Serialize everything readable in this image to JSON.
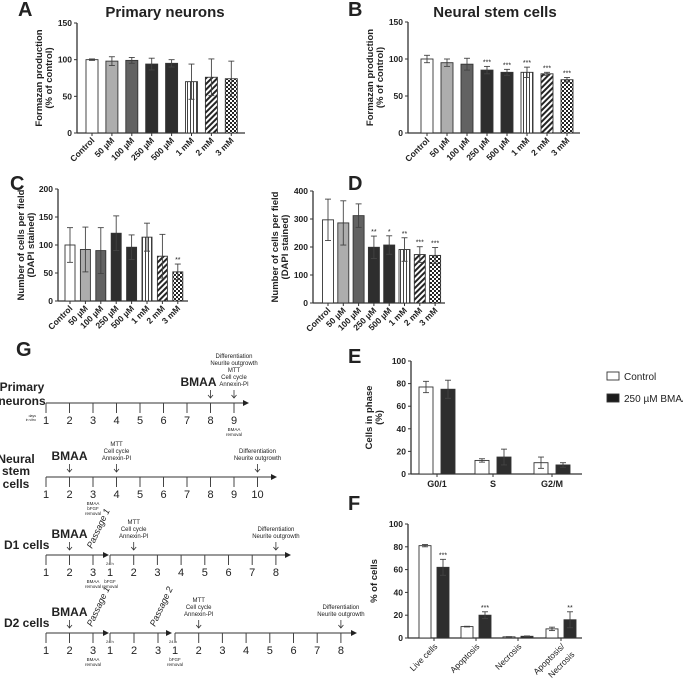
{
  "chart_data": [
    {
      "id": "A",
      "type": "bar",
      "panel_label": "A",
      "title": "Primary neurons",
      "ylabel": [
        "Formazan production",
        "(% of control)"
      ],
      "ylim": [
        0,
        150
      ],
      "yticks": [
        0,
        50,
        100,
        150
      ],
      "categories": [
        "Control",
        "50 µM",
        "100 µM",
        "250 µM",
        "500 µM",
        "1 mM",
        "2 mM",
        "3 mM"
      ],
      "values": [
        100,
        98,
        99,
        94,
        95,
        70,
        76,
        74
      ],
      "errors": [
        1,
        6,
        4,
        8,
        5,
        24,
        25,
        24
      ],
      "significance": [
        "",
        "",
        "",
        "",
        "",
        "",
        "",
        ""
      ]
    },
    {
      "id": "B",
      "type": "bar",
      "panel_label": "B",
      "title": "Neural stem cells",
      "ylabel": [
        "Formazan production",
        "(% of control)"
      ],
      "ylim": [
        0,
        150
      ],
      "yticks": [
        0,
        50,
        100,
        150
      ],
      "categories": [
        "Control",
        "50 µM",
        "100 µM",
        "250 µM",
        "500 µM",
        "1 mM",
        "2 mM",
        "3 mM"
      ],
      "values": [
        100,
        95,
        93,
        85,
        82,
        82,
        80,
        72
      ],
      "errors": [
        5,
        5,
        8,
        5,
        4,
        7,
        2,
        3
      ],
      "significance": [
        "",
        "",
        "",
        "***",
        "***",
        "***",
        "***",
        "***"
      ]
    },
    {
      "id": "C",
      "type": "bar",
      "panel_label": "C",
      "title": "",
      "ylabel": [
        "Number of cells per field",
        "(DAPI stained)"
      ],
      "ylim": [
        0,
        200
      ],
      "yticks": [
        0,
        50,
        100,
        150,
        200
      ],
      "categories": [
        "Control",
        "50 µM",
        "100 µM",
        "250 µM",
        "500 µM",
        "1 mM",
        "2 mM",
        "3 mM"
      ],
      "values": [
        100,
        92,
        90,
        121,
        96,
        114,
        80,
        52
      ],
      "errors": [
        31,
        40,
        41,
        31,
        22,
        25,
        39,
        14
      ],
      "significance": [
        "",
        "",
        "",
        "",
        "",
        "",
        "",
        "**"
      ]
    },
    {
      "id": "D",
      "type": "bar",
      "panel_label": "D",
      "title": "",
      "ylabel": [
        "Number of cells per field",
        "(DAPI stained)"
      ],
      "ylim": [
        0,
        400
      ],
      "yticks": [
        0,
        100,
        200,
        300,
        400
      ],
      "categories": [
        "Control",
        "50 µM",
        "100 µM",
        "250 µM",
        "500 µM",
        "1 mM",
        "2 mM",
        "3 mM"
      ],
      "values": [
        297,
        286,
        312,
        199,
        207,
        191,
        173,
        170
      ],
      "errors": [
        74,
        79,
        42,
        40,
        33,
        42,
        28,
        28
      ],
      "significance": [
        "",
        "",
        "",
        "**",
        "*",
        "**",
        "***",
        "***"
      ]
    },
    {
      "id": "E",
      "type": "bar",
      "panel_label": "E",
      "title": "",
      "ylabel": [
        "Cells in phase",
        "(%)"
      ],
      "ylim": [
        0,
        100
      ],
      "yticks": [
        0,
        20,
        40,
        60,
        80,
        100
      ],
      "categories": [
        "G0/1",
        "S",
        "G2/M"
      ],
      "series": [
        {
          "name": "Control",
          "values": [
            77,
            12,
            10
          ],
          "errors": [
            5,
            1.5,
            5
          ],
          "significance": [
            "",
            "",
            ""
          ]
        },
        {
          "name": "250 µM BMAA",
          "values": [
            75,
            15,
            8
          ],
          "errors": [
            8,
            7,
            2
          ],
          "significance": [
            "",
            "",
            ""
          ]
        }
      ],
      "legend": "right"
    },
    {
      "id": "F",
      "type": "bar",
      "panel_label": "F",
      "title": "",
      "ylabel": [
        "% of cells"
      ],
      "ylim": [
        0,
        100
      ],
      "yticks": [
        0,
        20,
        40,
        60,
        80,
        100
      ],
      "categories": [
        "Live cells",
        "Apoptosis",
        "Necrosis",
        "Apoptosis/\nNecrosis"
      ],
      "series": [
        {
          "name": "Control",
          "values": [
            81,
            10,
            1,
            8
          ],
          "errors": [
            1,
            0.3,
            0.2,
            1.5
          ],
          "significance": [
            "",
            "",
            "",
            ""
          ]
        },
        {
          "name": "250 µM BMAA",
          "values": [
            62,
            20,
            1.5,
            16
          ],
          "errors": [
            7,
            3,
            0.3,
            7
          ],
          "significance": [
            "***",
            "***",
            "",
            "**"
          ]
        }
      ]
    }
  ],
  "legend": {
    "items": [
      "Control",
      "250 µM BMAA"
    ]
  },
  "timeline": {
    "panel_label": "G",
    "rows": [
      {
        "name": [
          "Primary",
          "neurons"
        ],
        "segments": [
          [
            "1",
            "2",
            "3",
            "4",
            "5",
            "6",
            "7",
            "8",
            "9"
          ]
        ],
        "pre_label": [
          "days",
          "in vitro"
        ],
        "events": [
          {
            "seg": 0,
            "tick": 7,
            "above": [
              "BMAA"
            ],
            "big": true
          },
          {
            "seg": 0,
            "tick": 8,
            "above": [
              "Differentiation",
              "Neurite outgrowth",
              "MTT",
              "Cell cycle",
              "Annexin-PI"
            ]
          },
          {
            "seg": 0,
            "tick": 8,
            "below": [
              "BMAA",
              "removal"
            ]
          }
        ]
      },
      {
        "name": [
          "Neural",
          "stem",
          "cells"
        ],
        "segments": [
          [
            "1",
            "2",
            "3",
            "4",
            "5",
            "6",
            "7",
            "8",
            "9",
            "10"
          ]
        ],
        "events": [
          {
            "seg": 0,
            "tick": 1,
            "above": [
              "BMAA"
            ],
            "big": true
          },
          {
            "seg": 0,
            "tick": 3,
            "above": [
              "MTT",
              "Cell cycle",
              "Annexin-PI"
            ]
          },
          {
            "seg": 0,
            "tick": 9,
            "above": [
              "Differentiation",
              "Neurite outgrowth"
            ]
          },
          {
            "seg": 0,
            "tick": 2,
            "below": [
              "BMAA",
              "bFGF",
              "removal"
            ]
          }
        ]
      },
      {
        "name": [
          "D1 cells"
        ],
        "segments": [
          [
            "1",
            "2",
            "3"
          ],
          [
            "1",
            "2",
            "3",
            "4",
            "5",
            "6",
            "7",
            "8"
          ]
        ],
        "passages": [
          "Passage 1"
        ],
        "gap_label": "24 h",
        "events": [
          {
            "seg": 0,
            "tick": 1,
            "above": [
              "BMAA"
            ],
            "big": true
          },
          {
            "seg": 1,
            "tick": 1,
            "above": [
              "MTT",
              "Cell cycle",
              "Annexin-PI"
            ]
          },
          {
            "seg": 1,
            "tick": 7,
            "above": [
              "Differentiation",
              "Neurite outgrowth"
            ]
          },
          {
            "seg": 0,
            "tick": 2,
            "below": [
              "BMAA",
              "removal"
            ]
          },
          {
            "seg": 1,
            "tick": 0,
            "below": [
              "bFGF",
              "removal"
            ]
          }
        ]
      },
      {
        "name": [
          "D2 cells"
        ],
        "segments": [
          [
            "1",
            "2",
            "3"
          ],
          [
            "1",
            "2",
            "3"
          ],
          [
            "1",
            "2",
            "3",
            "4",
            "5",
            "6",
            "7",
            "8"
          ]
        ],
        "passages": [
          "Passage 1",
          "Passage 2"
        ],
        "gap_label": "24 h",
        "events": [
          {
            "seg": 0,
            "tick": 1,
            "above": [
              "BMAA"
            ],
            "big": true
          },
          {
            "seg": 2,
            "tick": 1,
            "above": [
              "MTT",
              "Cell cycle",
              "Annexin-PI"
            ]
          },
          {
            "seg": 2,
            "tick": 7,
            "above": [
              "Differentiation",
              "Neurite outgrowth"
            ]
          },
          {
            "seg": 0,
            "tick": 2,
            "below": [
              "BMAA",
              "removal"
            ]
          },
          {
            "seg": 2,
            "tick": 0,
            "below": [
              "bFGF",
              "removal"
            ]
          }
        ]
      }
    ]
  },
  "colors": {
    "axis": "#333333",
    "control": "#ffffff",
    "c50": "#a6a6a6",
    "c100": "#555555",
    "c250": "#1c1c1c",
    "c500": "#1c1c1c",
    "bmaa": "#1c1c1c"
  }
}
